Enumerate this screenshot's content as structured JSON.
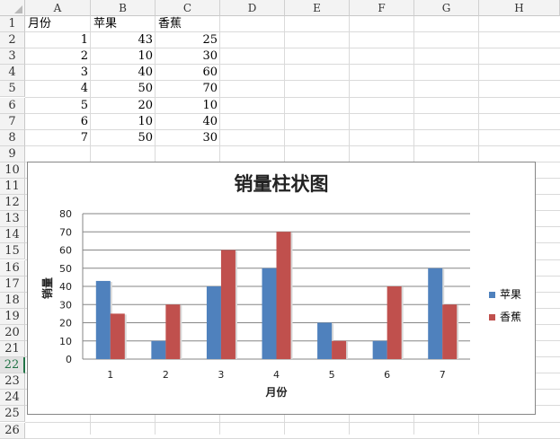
{
  "sheet": {
    "columns": [
      "A",
      "B",
      "C",
      "D",
      "E",
      "F",
      "G",
      "H"
    ],
    "rows": [
      "1",
      "2",
      "3",
      "4",
      "5",
      "6",
      "7",
      "8",
      "9",
      "10",
      "11",
      "12",
      "13",
      "14",
      "15",
      "16",
      "17",
      "18",
      "19",
      "20",
      "21",
      "22",
      "23",
      "24",
      "25",
      "26"
    ],
    "active_row": "22",
    "header": [
      "月份",
      "苹果",
      "香蕉"
    ],
    "data": [
      [
        "1",
        "43",
        "25"
      ],
      [
        "2",
        "10",
        "30"
      ],
      [
        "3",
        "40",
        "60"
      ],
      [
        "4",
        "50",
        "70"
      ],
      [
        "5",
        "20",
        "10"
      ],
      [
        "6",
        "10",
        "40"
      ],
      [
        "7",
        "50",
        "30"
      ]
    ]
  },
  "chart_data": {
    "type": "bar",
    "title": "销量柱状图",
    "xlabel": "月份",
    "ylabel": "销量",
    "categories": [
      "1",
      "2",
      "3",
      "4",
      "5",
      "6",
      "7"
    ],
    "series": [
      {
        "name": "苹果",
        "values": [
          43,
          10,
          40,
          50,
          20,
          10,
          50
        ],
        "color": "#4f81bd"
      },
      {
        "name": "香蕉",
        "values": [
          25,
          30,
          60,
          70,
          10,
          40,
          30
        ],
        "color": "#c0504d"
      }
    ],
    "ylim": [
      0,
      80
    ],
    "yticks": [
      0,
      10,
      20,
      30,
      40,
      50,
      60,
      70,
      80
    ],
    "grid": true,
    "legend": "right"
  }
}
